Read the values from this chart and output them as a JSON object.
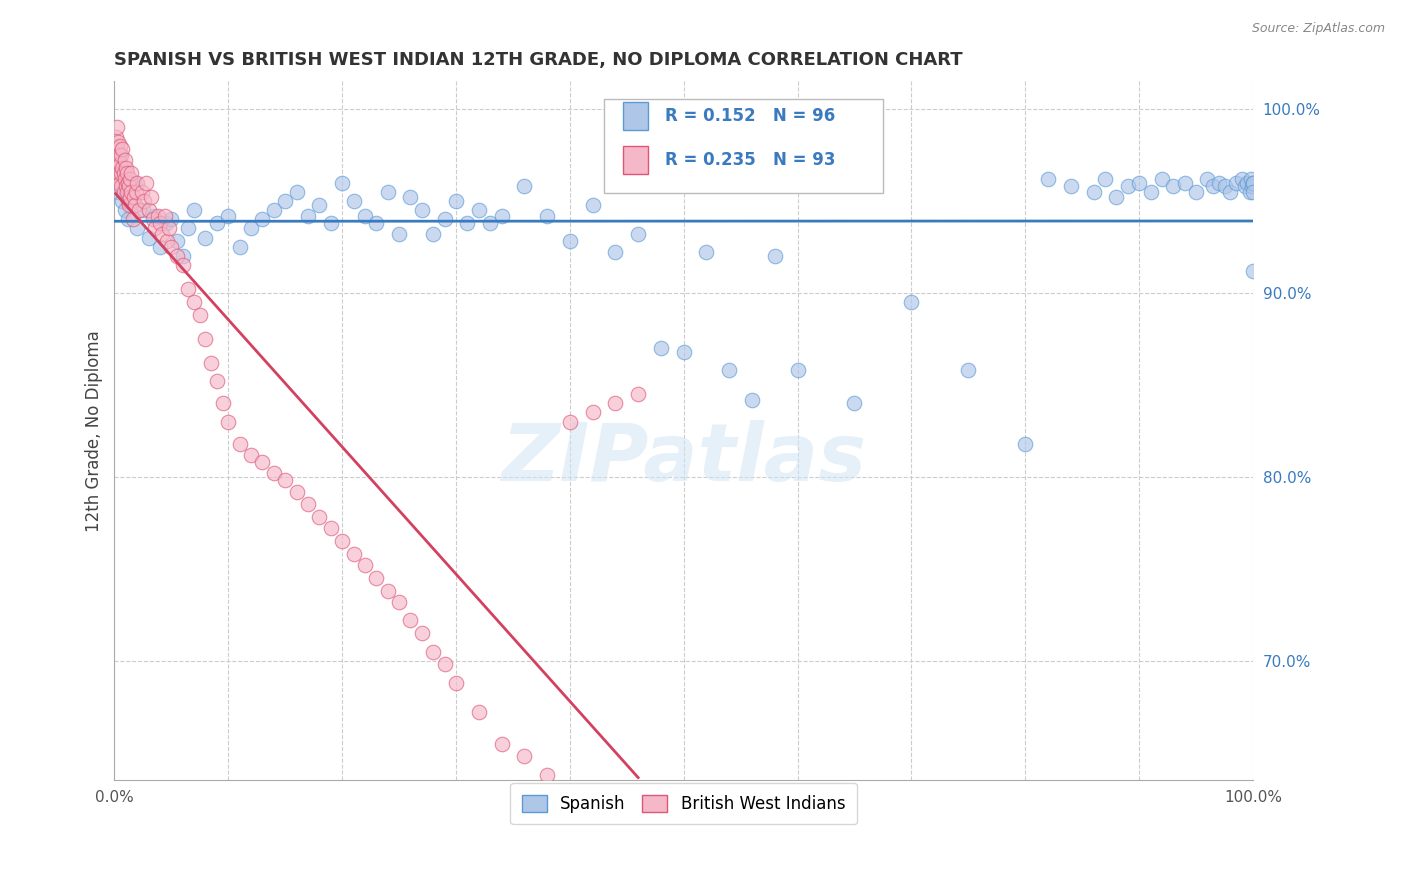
{
  "title": "SPANISH VS BRITISH WEST INDIAN 12TH GRADE, NO DIPLOMA CORRELATION CHART",
  "source_text": "Source: ZipAtlas.com",
  "ylabel": "12th Grade, No Diploma",
  "xlim": [
    0,
    1.0
  ],
  "ylim": [
    0.635,
    1.015
  ],
  "right_yticks": [
    0.7,
    0.8,
    0.9,
    1.0
  ],
  "right_yticklabels": [
    "70.0%",
    "80.0%",
    "90.0%",
    "100.0%"
  ],
  "xticks": [
    0.0,
    0.1,
    0.2,
    0.3,
    0.4,
    0.5,
    0.6,
    0.7,
    0.8,
    0.9,
    1.0
  ],
  "legend_R1": "R = 0.152",
  "legend_N1": "N = 96",
  "legend_R2": "R = 0.235",
  "legend_N2": "N = 93",
  "legend_label1": "Spanish",
  "legend_label2": "British West Indians",
  "blue_color": "#aec6e8",
  "blue_edge_color": "#5b9bd5",
  "blue_line_color": "#3a7abf",
  "pink_color": "#f4b8c8",
  "pink_edge_color": "#e05575",
  "pink_line_color": "#d44060",
  "legend_text_color": "#3a7abf",
  "watermark_text": "ZIPatlas",
  "background_color": "#ffffff",
  "dot_size": 110,
  "dot_alpha": 0.65,
  "spanish_x": [
    0.001,
    0.002,
    0.003,
    0.004,
    0.005,
    0.006,
    0.007,
    0.008,
    0.009,
    0.01,
    0.012,
    0.015,
    0.018,
    0.02,
    0.025,
    0.03,
    0.035,
    0.04,
    0.045,
    0.05,
    0.055,
    0.06,
    0.065,
    0.07,
    0.08,
    0.09,
    0.1,
    0.11,
    0.12,
    0.13,
    0.14,
    0.15,
    0.16,
    0.17,
    0.18,
    0.19,
    0.2,
    0.21,
    0.22,
    0.23,
    0.24,
    0.25,
    0.26,
    0.27,
    0.28,
    0.29,
    0.3,
    0.31,
    0.32,
    0.33,
    0.34,
    0.36,
    0.38,
    0.4,
    0.42,
    0.44,
    0.46,
    0.48,
    0.5,
    0.52,
    0.54,
    0.56,
    0.58,
    0.6,
    0.65,
    0.7,
    0.75,
    0.8,
    0.82,
    0.84,
    0.86,
    0.87,
    0.88,
    0.89,
    0.9,
    0.91,
    0.92,
    0.93,
    0.94,
    0.95,
    0.96,
    0.965,
    0.97,
    0.975,
    0.98,
    0.985,
    0.99,
    0.993,
    0.995,
    0.997,
    0.998,
    0.999,
    1.0,
    1.0,
    1.0,
    1.0
  ],
  "spanish_y": [
    0.96,
    0.965,
    0.955,
    0.97,
    0.975,
    0.962,
    0.95,
    0.958,
    0.945,
    0.955,
    0.94,
    0.948,
    0.96,
    0.935,
    0.945,
    0.93,
    0.942,
    0.925,
    0.938,
    0.94,
    0.928,
    0.92,
    0.935,
    0.945,
    0.93,
    0.938,
    0.942,
    0.925,
    0.935,
    0.94,
    0.945,
    0.95,
    0.955,
    0.942,
    0.948,
    0.938,
    0.96,
    0.95,
    0.942,
    0.938,
    0.955,
    0.932,
    0.952,
    0.945,
    0.932,
    0.94,
    0.95,
    0.938,
    0.945,
    0.938,
    0.942,
    0.958,
    0.942,
    0.928,
    0.948,
    0.922,
    0.932,
    0.87,
    0.868,
    0.922,
    0.858,
    0.842,
    0.92,
    0.858,
    0.84,
    0.895,
    0.858,
    0.818,
    0.962,
    0.958,
    0.955,
    0.962,
    0.952,
    0.958,
    0.96,
    0.955,
    0.962,
    0.958,
    0.96,
    0.955,
    0.962,
    0.958,
    0.96,
    0.958,
    0.955,
    0.96,
    0.962,
    0.958,
    0.96,
    0.955,
    0.962,
    0.958,
    0.96,
    0.96,
    0.955,
    0.912
  ],
  "bwi_x": [
    0.001,
    0.001,
    0.001,
    0.002,
    0.002,
    0.002,
    0.003,
    0.003,
    0.003,
    0.004,
    0.004,
    0.005,
    0.005,
    0.005,
    0.006,
    0.006,
    0.006,
    0.007,
    0.007,
    0.008,
    0.008,
    0.009,
    0.009,
    0.01,
    0.01,
    0.011,
    0.011,
    0.012,
    0.012,
    0.013,
    0.013,
    0.014,
    0.014,
    0.015,
    0.015,
    0.016,
    0.017,
    0.018,
    0.019,
    0.02,
    0.022,
    0.024,
    0.026,
    0.028,
    0.03,
    0.032,
    0.034,
    0.036,
    0.038,
    0.04,
    0.042,
    0.044,
    0.046,
    0.048,
    0.05,
    0.055,
    0.06,
    0.065,
    0.07,
    0.075,
    0.08,
    0.085,
    0.09,
    0.095,
    0.1,
    0.11,
    0.12,
    0.13,
    0.14,
    0.15,
    0.16,
    0.17,
    0.18,
    0.19,
    0.2,
    0.21,
    0.22,
    0.23,
    0.24,
    0.25,
    0.26,
    0.27,
    0.28,
    0.29,
    0.3,
    0.32,
    0.34,
    0.36,
    0.38,
    0.4,
    0.42,
    0.44,
    0.46
  ],
  "bwi_y": [
    0.98,
    0.972,
    0.985,
    0.978,
    0.968,
    0.99,
    0.962,
    0.972,
    0.982,
    0.975,
    0.965,
    0.96,
    0.97,
    0.98,
    0.965,
    0.975,
    0.958,
    0.968,
    0.978,
    0.955,
    0.965,
    0.962,
    0.972,
    0.958,
    0.968,
    0.955,
    0.965,
    0.95,
    0.96,
    0.948,
    0.958,
    0.962,
    0.952,
    0.955,
    0.965,
    0.94,
    0.952,
    0.948,
    0.955,
    0.96,
    0.945,
    0.955,
    0.95,
    0.96,
    0.945,
    0.952,
    0.94,
    0.935,
    0.942,
    0.938,
    0.932,
    0.942,
    0.928,
    0.935,
    0.925,
    0.92,
    0.915,
    0.902,
    0.895,
    0.888,
    0.875,
    0.862,
    0.852,
    0.84,
    0.83,
    0.818,
    0.812,
    0.808,
    0.802,
    0.798,
    0.792,
    0.785,
    0.778,
    0.772,
    0.765,
    0.758,
    0.752,
    0.745,
    0.738,
    0.732,
    0.722,
    0.715,
    0.705,
    0.698,
    0.688,
    0.672,
    0.655,
    0.648,
    0.638,
    0.83,
    0.835,
    0.84,
    0.845
  ]
}
